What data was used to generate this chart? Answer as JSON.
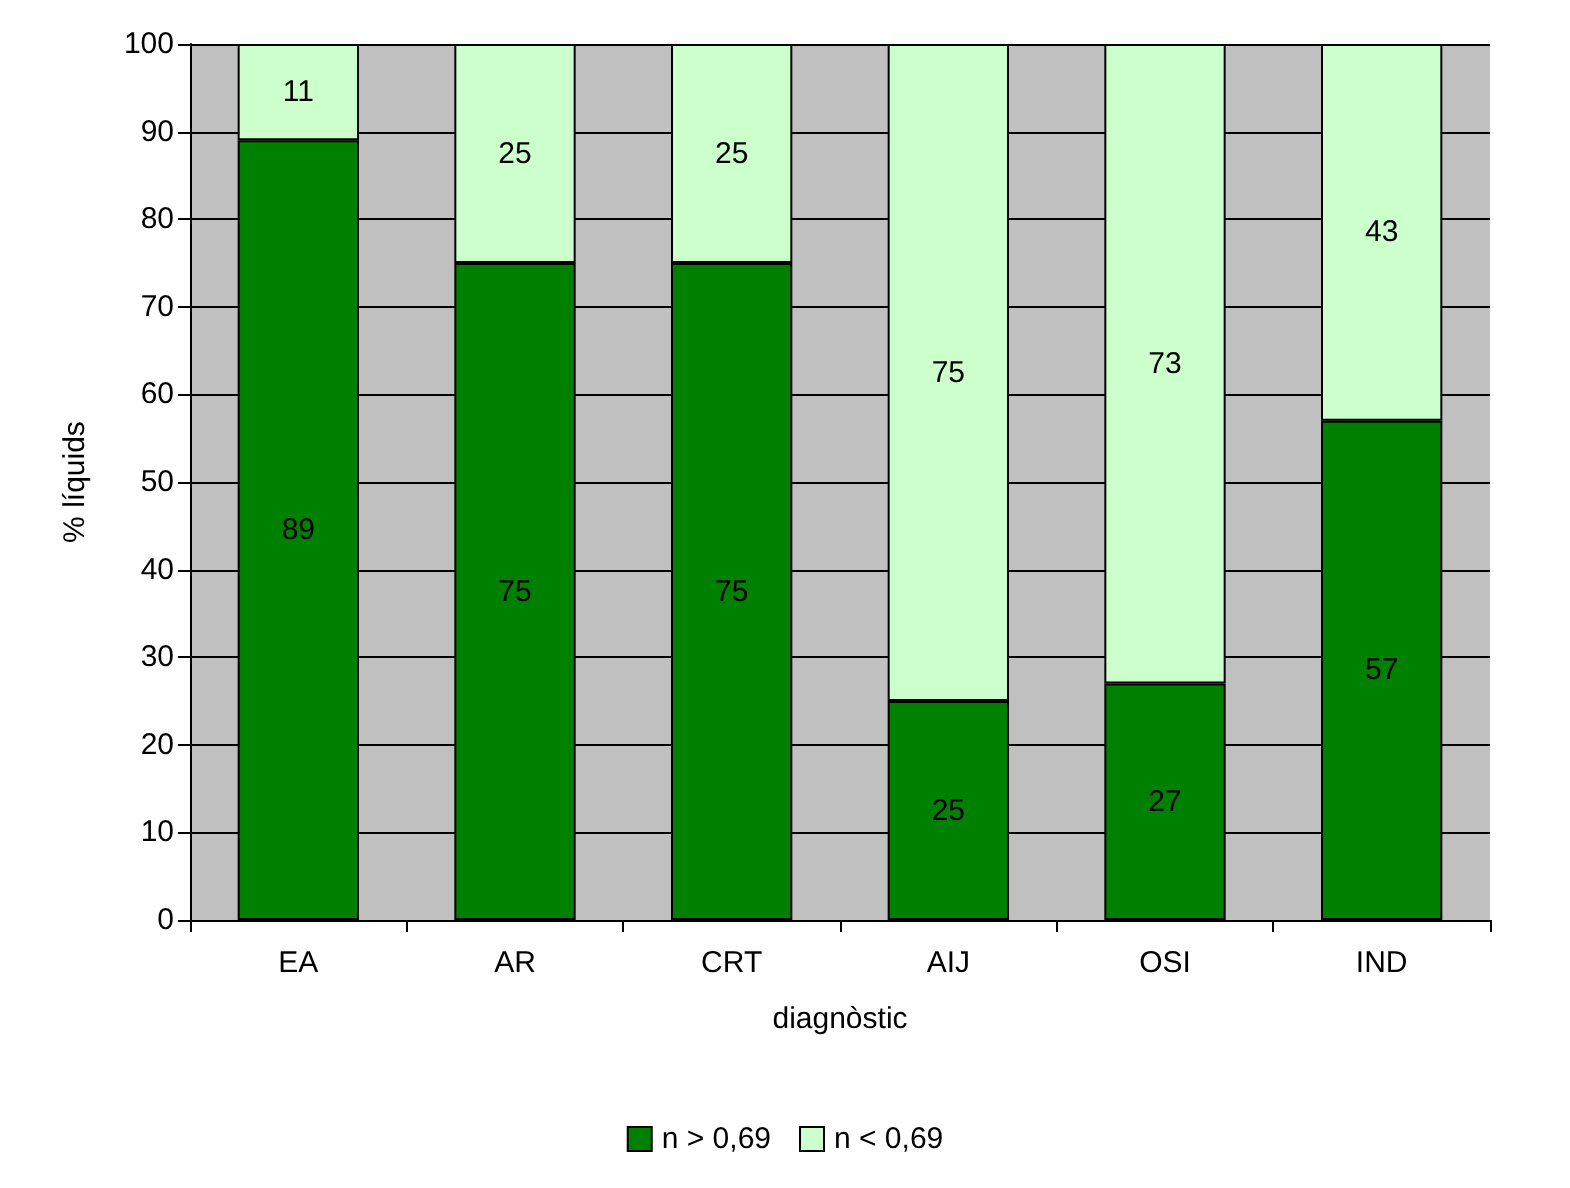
{
  "chart_data": {
    "type": "bar",
    "stacked": true,
    "xlabel": "diagnòstic",
    "ylabel": "% líquids",
    "categories": [
      "EA",
      "AR",
      "CRT",
      "AIJ",
      "OSI",
      "IND"
    ],
    "series": [
      {
        "name": "n > 0,69",
        "color": "#008000",
        "values": [
          89,
          75,
          75,
          25,
          27,
          57
        ]
      },
      {
        "name": "n < 0,69",
        "color": "#ccffcc",
        "values": [
          11,
          25,
          25,
          75,
          73,
          43
        ]
      }
    ],
    "ylim": [
      0,
      100
    ],
    "yticks": [
      0,
      10,
      20,
      30,
      40,
      50,
      60,
      70,
      80,
      90,
      100
    ],
    "grid": "y",
    "legend": "bottom",
    "data_labels": true
  }
}
